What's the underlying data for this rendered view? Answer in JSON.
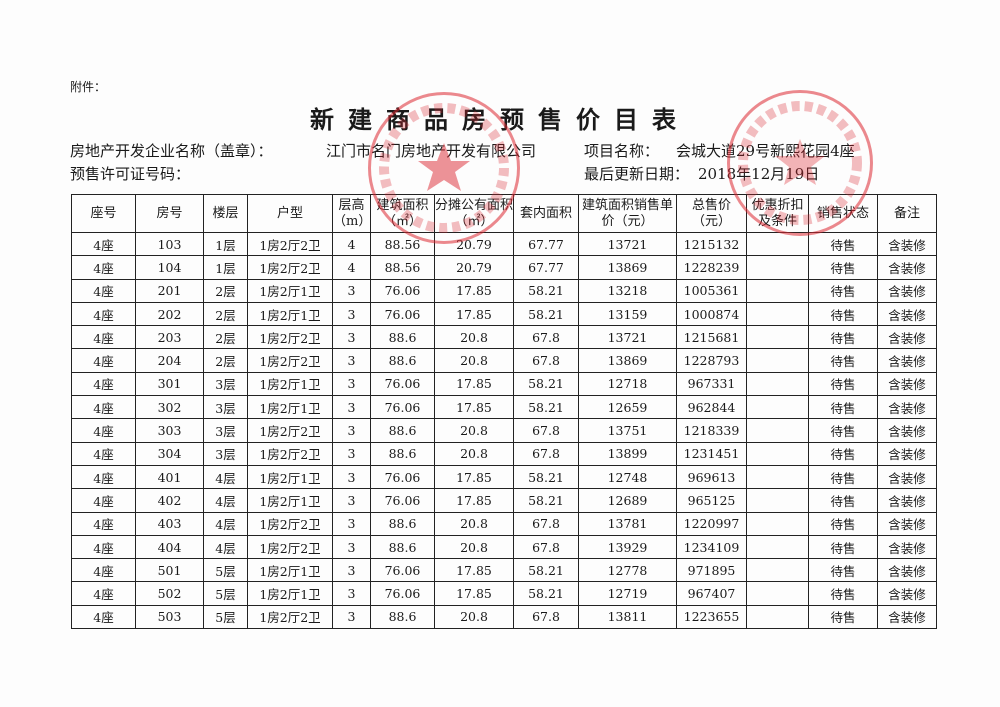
{
  "attachment_label": "附件：",
  "title": "新建商品房预售价目表",
  "developer_label": "房地产开发企业名称（盖章）：",
  "developer_name": "江门市名门房地产开发有限公司",
  "project_label": "项目名称：",
  "project_name": "会城大道29号新熙花园4座",
  "permit_label": "预售许可证号码：",
  "update_label": "最后更新日期：",
  "update_date": "2018年12月19日",
  "stamp_color": "#dc2832",
  "stamps": [
    "江门市名门房地产开发有限公司",
    "江门市新会区发展和改革局"
  ],
  "columns": [
    "座号",
    "房号",
    "楼层",
    "户型",
    "层高（m）",
    "建筑面积（㎡）",
    "分摊公有面积（㎡）",
    "套内面积",
    "建筑面积销售单价（元）",
    "总售价（元）",
    "优惠折扣及条件",
    "销售状态",
    "备注"
  ],
  "rows": [
    [
      "4座",
      "103",
      "1层",
      "1房2厅2卫",
      "4",
      "88.56",
      "20.79",
      "67.77",
      "13721",
      "1215132",
      "",
      "待售",
      "含装修"
    ],
    [
      "4座",
      "104",
      "1层",
      "1房2厅2卫",
      "4",
      "88.56",
      "20.79",
      "67.77",
      "13869",
      "1228239",
      "",
      "待售",
      "含装修"
    ],
    [
      "4座",
      "201",
      "2层",
      "1房2厅1卫",
      "3",
      "76.06",
      "17.85",
      "58.21",
      "13218",
      "1005361",
      "",
      "待售",
      "含装修"
    ],
    [
      "4座",
      "202",
      "2层",
      "1房2厅1卫",
      "3",
      "76.06",
      "17.85",
      "58.21",
      "13159",
      "1000874",
      "",
      "待售",
      "含装修"
    ],
    [
      "4座",
      "203",
      "2层",
      "1房2厅2卫",
      "3",
      "88.6",
      "20.8",
      "67.8",
      "13721",
      "1215681",
      "",
      "待售",
      "含装修"
    ],
    [
      "4座",
      "204",
      "2层",
      "1房2厅2卫",
      "3",
      "88.6",
      "20.8",
      "67.8",
      "13869",
      "1228793",
      "",
      "待售",
      "含装修"
    ],
    [
      "4座",
      "301",
      "3层",
      "1房2厅1卫",
      "3",
      "76.06",
      "17.85",
      "58.21",
      "12718",
      "967331",
      "",
      "待售",
      "含装修"
    ],
    [
      "4座",
      "302",
      "3层",
      "1房2厅1卫",
      "3",
      "76.06",
      "17.85",
      "58.21",
      "12659",
      "962844",
      "",
      "待售",
      "含装修"
    ],
    [
      "4座",
      "303",
      "3层",
      "1房2厅2卫",
      "3",
      "88.6",
      "20.8",
      "67.8",
      "13751",
      "1218339",
      "",
      "待售",
      "含装修"
    ],
    [
      "4座",
      "304",
      "3层",
      "1房2厅2卫",
      "3",
      "88.6",
      "20.8",
      "67.8",
      "13899",
      "1231451",
      "",
      "待售",
      "含装修"
    ],
    [
      "4座",
      "401",
      "4层",
      "1房2厅1卫",
      "3",
      "76.06",
      "17.85",
      "58.21",
      "12748",
      "969613",
      "",
      "待售",
      "含装修"
    ],
    [
      "4座",
      "402",
      "4层",
      "1房2厅1卫",
      "3",
      "76.06",
      "17.85",
      "58.21",
      "12689",
      "965125",
      "",
      "待售",
      "含装修"
    ],
    [
      "4座",
      "403",
      "4层",
      "1房2厅2卫",
      "3",
      "88.6",
      "20.8",
      "67.8",
      "13781",
      "1220997",
      "",
      "待售",
      "含装修"
    ],
    [
      "4座",
      "404",
      "4层",
      "1房2厅2卫",
      "3",
      "88.6",
      "20.8",
      "67.8",
      "13929",
      "1234109",
      "",
      "待售",
      "含装修"
    ],
    [
      "4座",
      "501",
      "5层",
      "1房2厅1卫",
      "3",
      "76.06",
      "17.85",
      "58.21",
      "12778",
      "971895",
      "",
      "待售",
      "含装修"
    ],
    [
      "4座",
      "502",
      "5层",
      "1房2厅1卫",
      "3",
      "76.06",
      "17.85",
      "58.21",
      "12719",
      "967407",
      "",
      "待售",
      "含装修"
    ],
    [
      "4座",
      "503",
      "5层",
      "1房2厅2卫",
      "3",
      "88.6",
      "20.8",
      "67.8",
      "13811",
      "1223655",
      "",
      "待售",
      "含装修"
    ]
  ]
}
